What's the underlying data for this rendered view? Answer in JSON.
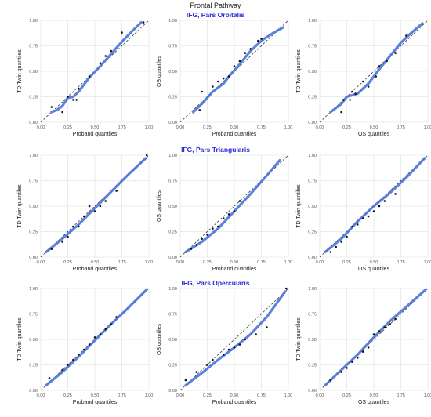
{
  "title": "Frontal Pathway",
  "colors": {
    "line": "#4a74d8",
    "point": "#111111",
    "grid": "#e6e6e6",
    "diagonal": "#333333",
    "row_title": "#2b2bd9"
  },
  "chart_data": [
    {
      "type": "scatter",
      "section": "IFG, Pars Orbitalis",
      "xlabel": "Proband quantiles",
      "ylabel": "TD Twin quantiles",
      "xlim": [
        0,
        1
      ],
      "ylim": [
        0,
        1
      ],
      "ticks": [
        "0.00",
        "0.25",
        "0.50",
        "0.75",
        "1.00"
      ],
      "grid": true,
      "reference_line": "y = x (dashed)",
      "points": [
        [
          0.1,
          0.15
        ],
        [
          0.2,
          0.1
        ],
        [
          0.25,
          0.25
        ],
        [
          0.3,
          0.22
        ],
        [
          0.33,
          0.22
        ],
        [
          0.35,
          0.33
        ],
        [
          0.45,
          0.45
        ],
        [
          0.55,
          0.58
        ],
        [
          0.6,
          0.65
        ],
        [
          0.65,
          0.7
        ],
        [
          0.75,
          0.88
        ],
        [
          0.95,
          0.98
        ]
      ],
      "fit": [
        [
          0.1,
          0.1
        ],
        [
          0.15,
          0.12
        ],
        [
          0.2,
          0.16
        ],
        [
          0.25,
          0.24
        ],
        [
          0.3,
          0.25
        ],
        [
          0.35,
          0.3
        ],
        [
          0.45,
          0.44
        ],
        [
          0.55,
          0.55
        ],
        [
          0.65,
          0.67
        ],
        [
          0.75,
          0.79
        ],
        [
          0.85,
          0.9
        ],
        [
          0.93,
          0.98
        ]
      ]
    },
    {
      "type": "scatter",
      "section": "IFG, Pars Orbitalis",
      "xlabel": "Proband quantiles",
      "ylabel": "OS quantiles",
      "xlim": [
        0,
        1
      ],
      "ylim": [
        0,
        1
      ],
      "ticks": [
        "0.00",
        "0.25",
        "0.50",
        "0.75",
        "1.00"
      ],
      "grid": true,
      "reference_line": "y = x (dashed)",
      "points": [
        [
          0.18,
          0.12
        ],
        [
          0.2,
          0.3
        ],
        [
          0.3,
          0.35
        ],
        [
          0.35,
          0.4
        ],
        [
          0.4,
          0.43
        ],
        [
          0.45,
          0.45
        ],
        [
          0.5,
          0.55
        ],
        [
          0.55,
          0.6
        ],
        [
          0.6,
          0.68
        ],
        [
          0.65,
          0.72
        ],
        [
          0.72,
          0.8
        ],
        [
          0.75,
          0.82
        ]
      ],
      "fit": [
        [
          0.12,
          0.1
        ],
        [
          0.2,
          0.18
        ],
        [
          0.3,
          0.3
        ],
        [
          0.4,
          0.38
        ],
        [
          0.45,
          0.45
        ],
        [
          0.55,
          0.57
        ],
        [
          0.65,
          0.7
        ],
        [
          0.75,
          0.8
        ],
        [
          0.85,
          0.87
        ],
        [
          0.95,
          0.93
        ]
      ]
    },
    {
      "type": "scatter",
      "section": "IFG, Pars Orbitalis",
      "xlabel": "OS quantiles",
      "ylabel": "TD Twin quantiles",
      "xlim": [
        0,
        1
      ],
      "ylim": [
        0,
        1
      ],
      "ticks": [
        "0.00",
        "0.25",
        "0.50",
        "0.75",
        "1.00"
      ],
      "grid": true,
      "reference_line": "y = x (dashed)",
      "points": [
        [
          0.2,
          0.1
        ],
        [
          0.22,
          0.22
        ],
        [
          0.28,
          0.22
        ],
        [
          0.3,
          0.3
        ],
        [
          0.33,
          0.28
        ],
        [
          0.4,
          0.4
        ],
        [
          0.45,
          0.35
        ],
        [
          0.52,
          0.45
        ],
        [
          0.55,
          0.55
        ],
        [
          0.62,
          0.6
        ],
        [
          0.7,
          0.68
        ],
        [
          0.8,
          0.85
        ]
      ],
      "fit": [
        [
          0.1,
          0.1
        ],
        [
          0.2,
          0.18
        ],
        [
          0.25,
          0.25
        ],
        [
          0.35,
          0.28
        ],
        [
          0.45,
          0.38
        ],
        [
          0.55,
          0.52
        ],
        [
          0.65,
          0.65
        ],
        [
          0.75,
          0.78
        ],
        [
          0.85,
          0.88
        ],
        [
          0.95,
          0.97
        ]
      ]
    },
    {
      "type": "scatter",
      "section": "IFG, Pars Triangularis",
      "xlabel": "Proband quantiles",
      "ylabel": "TD Twin quantiles",
      "xlim": [
        0,
        1
      ],
      "ylim": [
        0,
        1
      ],
      "ticks": [
        "0.00",
        "0.25",
        "0.50",
        "0.75",
        "1.00"
      ],
      "grid": true,
      "reference_line": "y = x (dashed)",
      "points": [
        [
          0.1,
          0.08
        ],
        [
          0.2,
          0.15
        ],
        [
          0.25,
          0.2
        ],
        [
          0.3,
          0.3
        ],
        [
          0.35,
          0.3
        ],
        [
          0.4,
          0.4
        ],
        [
          0.45,
          0.5
        ],
        [
          0.5,
          0.45
        ],
        [
          0.55,
          0.5
        ],
        [
          0.6,
          0.55
        ],
        [
          0.7,
          0.65
        ],
        [
          0.98,
          1.0
        ]
      ],
      "fit": [
        [
          0.05,
          0.05
        ],
        [
          0.2,
          0.18
        ],
        [
          0.35,
          0.32
        ],
        [
          0.5,
          0.48
        ],
        [
          0.65,
          0.64
        ],
        [
          0.8,
          0.8
        ],
        [
          0.97,
          0.97
        ]
      ]
    },
    {
      "type": "scatter",
      "section": "IFG, Pars Triangularis",
      "xlabel": "Proband quantiles",
      "ylabel": "OS quantiles",
      "xlim": [
        0,
        1
      ],
      "ylim": [
        0,
        1
      ],
      "ticks": [
        "0.00",
        "0.25",
        "0.50",
        "0.75",
        "1.00"
      ],
      "grid": true,
      "reference_line": "y = x (dashed)",
      "points": [
        [
          0.1,
          0.08
        ],
        [
          0.15,
          0.12
        ],
        [
          0.2,
          0.18
        ],
        [
          0.25,
          0.22
        ],
        [
          0.3,
          0.28
        ],
        [
          0.35,
          0.3
        ],
        [
          0.4,
          0.38
        ],
        [
          0.45,
          0.42
        ],
        [
          0.5,
          0.45
        ],
        [
          0.55,
          0.55
        ]
      ],
      "fit": [
        [
          0.05,
          0.05
        ],
        [
          0.2,
          0.15
        ],
        [
          0.35,
          0.28
        ],
        [
          0.5,
          0.45
        ],
        [
          0.65,
          0.62
        ],
        [
          0.8,
          0.8
        ],
        [
          0.92,
          0.95
        ]
      ]
    },
    {
      "type": "scatter",
      "section": "IFG, Pars Triangularis",
      "xlabel": "OS quantiles",
      "ylabel": "TD Twin quantiles",
      "xlim": [
        0,
        1
      ],
      "ylim": [
        0,
        1
      ],
      "ticks": [
        "0.00",
        "0.25",
        "0.50",
        "0.75",
        "1.00"
      ],
      "grid": true,
      "reference_line": "y = x (dashed)",
      "points": [
        [
          0.1,
          0.05
        ],
        [
          0.15,
          0.1
        ],
        [
          0.2,
          0.15
        ],
        [
          0.25,
          0.2
        ],
        [
          0.3,
          0.3
        ],
        [
          0.35,
          0.32
        ],
        [
          0.4,
          0.38
        ],
        [
          0.45,
          0.4
        ],
        [
          0.5,
          0.45
        ],
        [
          0.55,
          0.5
        ],
        [
          0.6,
          0.55
        ],
        [
          0.7,
          0.62
        ]
      ],
      "fit": [
        [
          0.05,
          0.05
        ],
        [
          0.2,
          0.18
        ],
        [
          0.35,
          0.35
        ],
        [
          0.5,
          0.5
        ],
        [
          0.65,
          0.63
        ],
        [
          0.8,
          0.78
        ],
        [
          0.97,
          0.97
        ]
      ]
    },
    {
      "type": "scatter",
      "section": "IFG, Pars Opercularis",
      "xlabel": "Proband quantiles",
      "ylabel": "TD Twin quantiles",
      "xlim": [
        0,
        1
      ],
      "ylim": [
        0,
        1
      ],
      "ticks": [
        "0.00",
        "0.25",
        "0.50",
        "0.75",
        "1.00"
      ],
      "grid": true,
      "reference_line": "y = x (dashed)",
      "points": [
        [
          0.08,
          0.12
        ],
        [
          0.2,
          0.2
        ],
        [
          0.25,
          0.25
        ],
        [
          0.3,
          0.3
        ],
        [
          0.35,
          0.35
        ],
        [
          0.4,
          0.4
        ],
        [
          0.45,
          0.45
        ],
        [
          0.5,
          0.52
        ],
        [
          0.55,
          0.55
        ],
        [
          0.6,
          0.6
        ],
        [
          0.65,
          0.65
        ],
        [
          0.7,
          0.72
        ]
      ],
      "fit": [
        [
          0.05,
          0.05
        ],
        [
          0.2,
          0.18
        ],
        [
          0.35,
          0.33
        ],
        [
          0.5,
          0.49
        ],
        [
          0.65,
          0.65
        ],
        [
          0.8,
          0.8
        ],
        [
          0.97,
          0.98
        ]
      ]
    },
    {
      "type": "scatter",
      "section": "IFG, Pars Opercularis",
      "xlabel": "Proband quantiles",
      "ylabel": "OS quantiles",
      "xlim": [
        0,
        1
      ],
      "ylim": [
        0,
        1
      ],
      "ticks": [
        "0.00",
        "0.25",
        "0.50",
        "0.75",
        "1.00"
      ],
      "grid": true,
      "reference_line": "y = x (dashed)",
      "points": [
        [
          0.05,
          0.1
        ],
        [
          0.15,
          0.18
        ],
        [
          0.25,
          0.25
        ],
        [
          0.3,
          0.3
        ],
        [
          0.4,
          0.35
        ],
        [
          0.45,
          0.4
        ],
        [
          0.5,
          0.42
        ],
        [
          0.55,
          0.45
        ],
        [
          0.6,
          0.5
        ],
        [
          0.7,
          0.55
        ],
        [
          0.8,
          0.62
        ],
        [
          0.98,
          1.0
        ]
      ],
      "fit": [
        [
          0.05,
          0.05
        ],
        [
          0.2,
          0.17
        ],
        [
          0.35,
          0.3
        ],
        [
          0.5,
          0.42
        ],
        [
          0.65,
          0.55
        ],
        [
          0.8,
          0.72
        ],
        [
          0.97,
          0.97
        ]
      ]
    },
    {
      "type": "scatter",
      "section": "IFG, Pars Opercularis",
      "xlabel": "OS quantiles",
      "ylabel": "TD Twin quantiles",
      "xlim": [
        0,
        1
      ],
      "ylim": [
        0,
        1
      ],
      "ticks": [
        "0.00",
        "0.25",
        "0.50",
        "0.75",
        "1.00"
      ],
      "grid": true,
      "reference_line": "y = x (dashed)",
      "points": [
        [
          0.1,
          0.1
        ],
        [
          0.2,
          0.18
        ],
        [
          0.25,
          0.22
        ],
        [
          0.3,
          0.28
        ],
        [
          0.35,
          0.32
        ],
        [
          0.4,
          0.38
        ],
        [
          0.45,
          0.42
        ],
        [
          0.5,
          0.55
        ],
        [
          0.55,
          0.58
        ],
        [
          0.6,
          0.62
        ],
        [
          0.65,
          0.65
        ],
        [
          0.7,
          0.7
        ]
      ],
      "fit": [
        [
          0.05,
          0.05
        ],
        [
          0.2,
          0.2
        ],
        [
          0.35,
          0.35
        ],
        [
          0.5,
          0.52
        ],
        [
          0.65,
          0.68
        ],
        [
          0.8,
          0.82
        ],
        [
          0.97,
          0.98
        ]
      ]
    }
  ]
}
